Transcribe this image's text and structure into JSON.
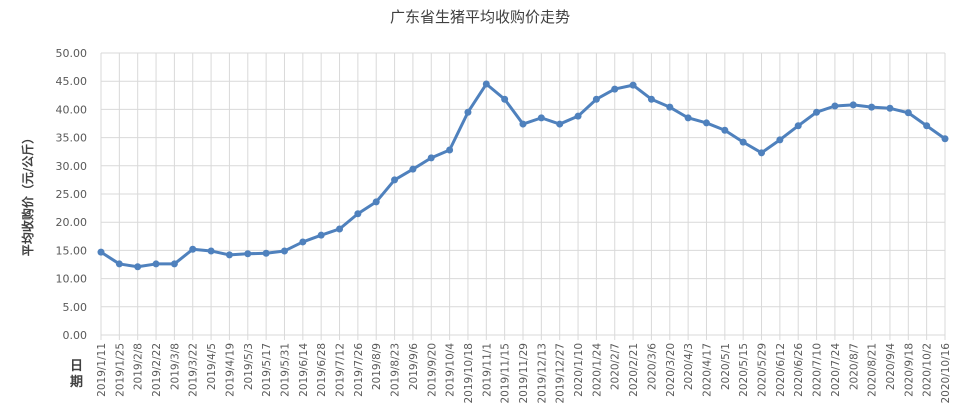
{
  "chart_data": {
    "type": "line",
    "title": "广东省生猪平均收购价走势",
    "xlabel": "日期",
    "ylabel": "平均收购价（元/公斤）",
    "ylim": [
      0,
      50
    ],
    "yticks": [
      "0.00",
      "5.00",
      "10.00",
      "15.00",
      "20.00",
      "25.00",
      "30.00",
      "35.00",
      "40.00",
      "45.00",
      "50.00"
    ],
    "grid": true,
    "color": "#4f81bd",
    "categories": [
      "2019/1/11",
      "2019/1/25",
      "2019/2/8",
      "2019/2/22",
      "2019/3/8",
      "2019/3/22",
      "2019/4/5",
      "2019/4/19",
      "2019/5/3",
      "2019/5/17",
      "2019/5/31",
      "2019/6/14",
      "2019/6/28",
      "2019/7/12",
      "2019/7/26",
      "2019/8/9",
      "2019/8/23",
      "2019/9/6",
      "2019/9/20",
      "2019/10/4",
      "2019/10/18",
      "2019/11/1",
      "2019/11/15",
      "2019/11/29",
      "2019/12/13",
      "2019/12/27",
      "2020/1/10",
      "2020/1/24",
      "2020/2/7",
      "2020/2/21",
      "2020/3/6",
      "2020/3/20",
      "2020/4/3",
      "2020/4/17",
      "2020/5/1",
      "2020/5/15",
      "2020/5/29",
      "2020/6/12",
      "2020/6/26",
      "2020/7/10",
      "2020/7/24",
      "2020/8/7",
      "2020/8/21",
      "2020/9/4",
      "2020/9/18",
      "2020/10/2",
      "2020/10/16"
    ],
    "values": [
      14.7,
      12.6,
      12.1,
      12.6,
      12.6,
      15.2,
      14.9,
      14.2,
      14.4,
      14.5,
      14.9,
      16.5,
      17.7,
      18.8,
      21.5,
      23.6,
      27.5,
      29.4,
      31.4,
      32.8,
      39.5,
      44.5,
      41.8,
      37.4,
      38.5,
      37.4,
      38.8,
      41.8,
      43.6,
      44.3,
      41.8,
      40.4,
      38.5,
      37.6,
      36.3,
      34.2,
      32.3,
      34.6,
      37.1,
      39.5,
      40.6,
      40.8,
      40.4,
      40.2,
      39.4,
      37.1,
      34.8
    ]
  }
}
